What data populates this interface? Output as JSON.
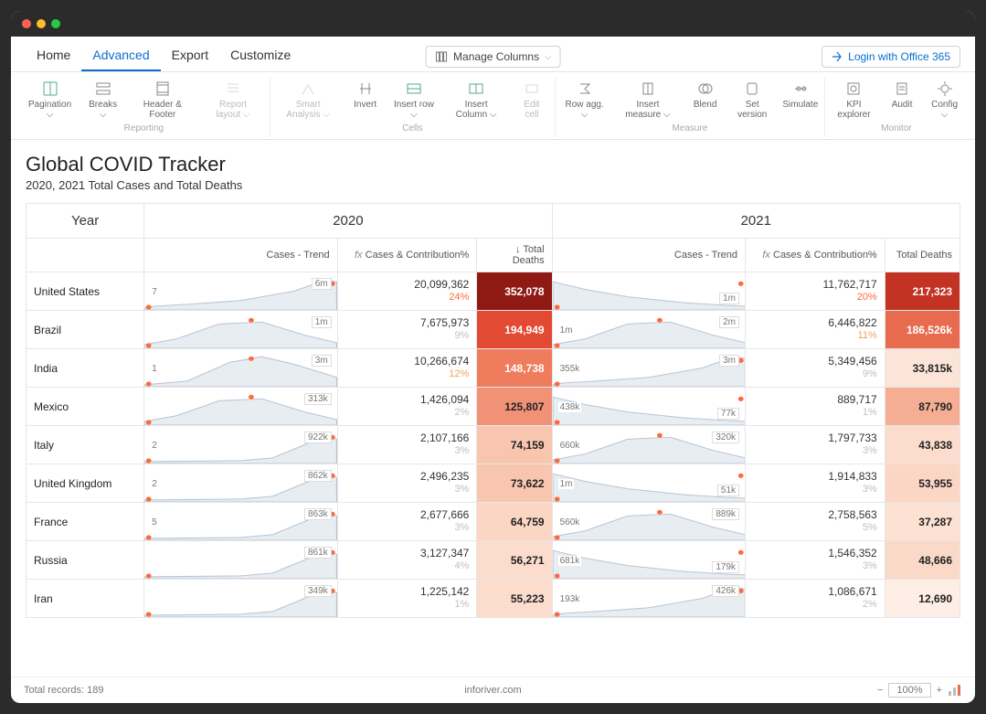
{
  "menubar": {
    "tabs": [
      "Home",
      "Advanced",
      "Export",
      "Customize"
    ],
    "active": "Advanced",
    "manage_columns": "Manage Columns",
    "login": "Login with Office 365"
  },
  "ribbon": {
    "groups": [
      {
        "label": "Reporting",
        "items": [
          {
            "label": "Pagination",
            "drop": true
          },
          {
            "label": "Breaks",
            "drop": true
          },
          {
            "label": "Header & Footer"
          },
          {
            "label": "Report layout",
            "drop": true,
            "disabled": true
          }
        ]
      },
      {
        "label": "Cells",
        "items": [
          {
            "label": "Smart Analysis",
            "drop": true,
            "disabled": true
          },
          {
            "label": "Invert"
          },
          {
            "label": "Insert row",
            "drop": true
          },
          {
            "label": "Insert Column",
            "drop": true
          },
          {
            "label": "Edit cell",
            "disabled": true
          }
        ]
      },
      {
        "label": "Measure",
        "items": [
          {
            "label": "Row agg.",
            "drop": true
          },
          {
            "label": "Insert measure",
            "drop": true
          },
          {
            "label": "Blend"
          },
          {
            "label": "Set version"
          },
          {
            "label": "Simulate"
          }
        ]
      },
      {
        "label": "Monitor",
        "items": [
          {
            "label": "KPI explorer"
          },
          {
            "label": "Audit"
          },
          {
            "label": "Config",
            "drop": true
          }
        ]
      }
    ]
  },
  "report": {
    "title": "Global COVID Tracker",
    "subtitle": "2020, 2021 Total Cases and Total Deaths",
    "year_header": "Year",
    "years": [
      "2020",
      "2021"
    ],
    "columns": {
      "trend": "Cases - Trend",
      "cases": "Cases & Contribution%",
      "cases_prefix": "fx",
      "deaths": "Total Deaths",
      "deaths_sort_icon": "↓"
    },
    "rows": [
      {
        "name": "United States",
        "y2020": {
          "trend_left": "7",
          "trend_right": "6m",
          "shape": "rising",
          "cases": "20,099,362",
          "pct": "24%",
          "pct_color": "#ff6a3d",
          "deaths": "352,078",
          "bg": "#8f1a14",
          "fg": "#fff"
        },
        "y2021": {
          "trend_left": "",
          "trend_right": "1m",
          "shape": "falling",
          "cases": "11,762,717",
          "pct": "20%",
          "pct_color": "#ff6a3d",
          "deaths": "217,323",
          "bg": "#c23323",
          "fg": "#fff"
        }
      },
      {
        "name": "Brazil",
        "y2020": {
          "trend_left": "",
          "trend_right": "1m",
          "shape": "hump",
          "cases": "7,675,973",
          "pct": "9%",
          "pct_color": "#bfbfbf",
          "deaths": "194,949",
          "bg": "#e34a33",
          "fg": "#fff"
        },
        "y2021": {
          "trend_left": "1m",
          "trend_right": "2m",
          "shape": "hump",
          "cases": "6,446,822",
          "pct": "11%",
          "pct_color": "#f2a35e",
          "deaths": "186,526k",
          "bg": "#e86a4f",
          "fg": "#fff"
        }
      },
      {
        "name": "India",
        "y2020": {
          "trend_left": "1",
          "trend_right": "3m",
          "shape": "hump_high",
          "cases": "10,266,674",
          "pct": "12%",
          "pct_color": "#f2a35e",
          "deaths": "148,738",
          "bg": "#ee7c5d",
          "fg": "#fff"
        },
        "y2021": {
          "trend_left": "355k",
          "trend_right": "3m",
          "shape": "rising",
          "cases": "5,349,456",
          "pct": "9%",
          "pct_color": "#bfbfbf",
          "deaths": "33,815k",
          "bg": "#fde4d8",
          "fg": "#222"
        }
      },
      {
        "name": "Mexico",
        "y2020": {
          "trend_left": "",
          "trend_right": "313k",
          "shape": "hump",
          "cases": "1,426,094",
          "pct": "2%",
          "pct_color": "#bfbfbf",
          "deaths": "125,807",
          "bg": "#f19277",
          "fg": "#222"
        },
        "y2021": {
          "trend_left": "438k",
          "trend_right": "77k",
          "shape": "falling",
          "cases": "889,717",
          "pct": "1%",
          "pct_color": "#bfbfbf",
          "deaths": "87,790",
          "bg": "#f5ae94",
          "fg": "#222"
        }
      },
      {
        "name": "Italy",
        "y2020": {
          "trend_left": "2",
          "trend_right": "922k",
          "shape": "late_rise",
          "cases": "2,107,166",
          "pct": "3%",
          "pct_color": "#bfbfbf",
          "deaths": "74,159",
          "bg": "#f8c6af",
          "fg": "#222"
        },
        "y2021": {
          "trend_left": "660k",
          "trend_right": "320k",
          "shape": "hump",
          "cases": "1,797,733",
          "pct": "3%",
          "pct_color": "#bfbfbf",
          "deaths": "43,838",
          "bg": "#fcdccd",
          "fg": "#222"
        }
      },
      {
        "name": "United Kingdom",
        "y2020": {
          "trend_left": "2",
          "trend_right": "862k",
          "shape": "late_rise",
          "cases": "2,496,235",
          "pct": "3%",
          "pct_color": "#bfbfbf",
          "deaths": "73,622",
          "bg": "#f8c6af",
          "fg": "#222"
        },
        "y2021": {
          "trend_left": "1m",
          "trend_right": "51k",
          "shape": "falling",
          "cases": "1,914,833",
          "pct": "3%",
          "pct_color": "#bfbfbf",
          "deaths": "53,955",
          "bg": "#fbd6c4",
          "fg": "#222"
        }
      },
      {
        "name": "France",
        "y2020": {
          "trend_left": "5",
          "trend_right": "863k",
          "shape": "late_rise",
          "cases": "2,677,666",
          "pct": "3%",
          "pct_color": "#bfbfbf",
          "deaths": "64,759",
          "bg": "#fbd6c4",
          "fg": "#222"
        },
        "y2021": {
          "trend_left": "560k",
          "trend_right": "889k",
          "shape": "hump",
          "cases": "2,758,563",
          "pct": "5%",
          "pct_color": "#bfbfbf",
          "deaths": "37,287",
          "bg": "#fde1d3",
          "fg": "#222"
        }
      },
      {
        "name": "Russia",
        "y2020": {
          "trend_left": "",
          "trend_right": "861k",
          "shape": "late_rise",
          "cases": "3,127,347",
          "pct": "4%",
          "pct_color": "#bfbfbf",
          "deaths": "56,271",
          "bg": "#fcdccd",
          "fg": "#222"
        },
        "y2021": {
          "trend_left": "681k",
          "trend_right": "179k",
          "shape": "falling",
          "cases": "1,546,352",
          "pct": "3%",
          "pct_color": "#bfbfbf",
          "deaths": "48,666",
          "bg": "#fbd9c8",
          "fg": "#222"
        }
      },
      {
        "name": "Iran",
        "y2020": {
          "trend_left": "",
          "trend_right": "349k",
          "shape": "late_rise",
          "cases": "1,225,142",
          "pct": "1%",
          "pct_color": "#bfbfbf",
          "deaths": "55,223",
          "bg": "#fcdccd",
          "fg": "#222"
        },
        "y2021": {
          "trend_left": "193k",
          "trend_right": "426k",
          "shape": "rising",
          "cases": "1,086,671",
          "pct": "2%",
          "pct_color": "#bfbfbf",
          "deaths": "12,690",
          "bg": "#feeee6",
          "fg": "#222"
        }
      }
    ],
    "sparkline_styles": {
      "fill": "#e8edf2",
      "stroke": "#b9c5d4",
      "dot": "#ff6a3d"
    }
  },
  "footer": {
    "records": "Total records: 189",
    "site": "inforiver.com",
    "zoom": "100%"
  }
}
